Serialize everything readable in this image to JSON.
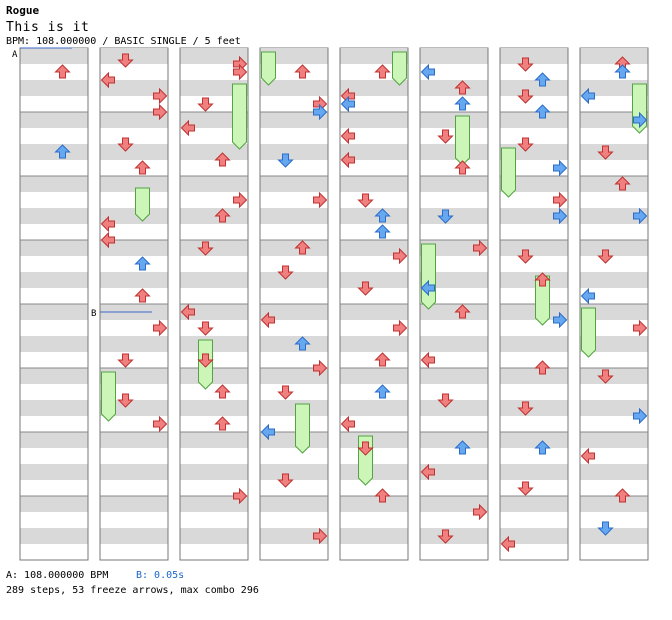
{
  "song": {
    "title": "Rogue",
    "subtitle": "This is it",
    "info": "BPM: 108.000000 / BASIC SINGLE / 5 feet"
  },
  "markers": {
    "a": "A",
    "b": "B"
  },
  "footer": {
    "bpm_a": "A: 108.000000 BPM",
    "stop_b": "B: 0.05s",
    "stats": "289 steps, 53 freeze arrows, max combo 296"
  },
  "colors": {
    "red": "#f08080",
    "blue": "#66a8f0",
    "freeze": "#ccf5b8",
    "freeze_border": "#54a244",
    "stripe": "#d9d9d9"
  },
  "chart_data": {
    "type": "step-chart",
    "lanes": [
      "left",
      "down",
      "up",
      "right"
    ],
    "columns": 8,
    "measures_per_column": 8,
    "notes": [
      [
        0,
        1,
        0,
        2
      ],
      [
        0,
        6,
        3,
        2
      ],
      [
        1,
        0.25,
        0,
        1
      ],
      [
        1,
        1.5,
        0,
        0
      ],
      [
        1,
        2.5,
        0,
        3
      ],
      [
        1,
        3.5,
        0,
        3
      ],
      [
        1,
        5.5,
        0,
        1
      ],
      [
        1,
        7,
        0,
        2
      ],
      [
        1,
        10.5,
        0,
        0
      ],
      [
        1,
        11.5,
        0,
        0
      ],
      [
        1,
        13,
        1,
        2
      ],
      [
        1,
        15,
        0,
        2
      ],
      [
        1,
        17,
        0,
        3
      ],
      [
        1,
        19,
        0,
        1
      ],
      [
        1,
        21.5,
        0,
        1
      ],
      [
        1,
        23,
        0,
        3
      ],
      [
        2,
        0.5,
        0,
        3
      ],
      [
        2,
        1,
        0,
        3
      ],
      [
        2,
        3,
        0,
        1
      ],
      [
        2,
        4.5,
        0,
        0
      ],
      [
        2,
        6.5,
        0,
        2
      ],
      [
        2,
        9,
        0,
        3
      ],
      [
        2,
        10,
        0,
        2
      ],
      [
        2,
        12,
        0,
        1
      ],
      [
        2,
        16,
        0,
        0
      ],
      [
        2,
        17,
        0,
        1
      ],
      [
        2,
        19,
        0,
        1
      ],
      [
        2,
        21,
        0,
        2
      ],
      [
        2,
        23,
        0,
        2
      ],
      [
        2,
        27.5,
        0,
        3
      ],
      [
        3,
        1,
        0,
        2
      ],
      [
        3,
        3,
        0,
        3
      ],
      [
        3,
        3.5,
        1,
        3
      ],
      [
        3,
        6.5,
        1,
        1
      ],
      [
        3,
        9,
        0,
        3
      ],
      [
        3,
        12,
        0,
        2
      ],
      [
        3,
        13.5,
        0,
        1
      ],
      [
        3,
        16.5,
        0,
        0
      ],
      [
        3,
        18,
        1,
        2
      ],
      [
        3,
        19.5,
        0,
        3
      ],
      [
        3,
        21,
        0,
        1
      ],
      [
        3,
        23.5,
        1,
        0
      ],
      [
        3,
        26.5,
        0,
        1
      ],
      [
        3,
        30,
        0,
        3
      ],
      [
        4,
        1,
        0,
        2
      ],
      [
        4,
        2.5,
        0,
        0
      ],
      [
        4,
        3,
        1,
        0
      ],
      [
        4,
        5,
        0,
        0
      ],
      [
        4,
        6.5,
        0,
        0
      ],
      [
        4,
        9,
        0,
        1
      ],
      [
        4,
        10,
        1,
        2
      ],
      [
        4,
        11,
        1,
        2
      ],
      [
        4,
        12.5,
        0,
        3
      ],
      [
        4,
        14.5,
        0,
        1
      ],
      [
        4,
        17,
        0,
        3
      ],
      [
        4,
        19,
        0,
        2
      ],
      [
        4,
        21,
        1,
        2
      ],
      [
        4,
        23,
        0,
        0
      ],
      [
        4,
        24.5,
        0,
        1
      ],
      [
        4,
        27.5,
        0,
        2
      ],
      [
        5,
        1,
        1,
        0
      ],
      [
        5,
        2,
        0,
        2
      ],
      [
        5,
        3,
        1,
        2
      ],
      [
        5,
        5,
        0,
        1
      ],
      [
        5,
        7,
        0,
        2
      ],
      [
        5,
        10,
        1,
        1
      ],
      [
        5,
        12,
        0,
        3
      ],
      [
        5,
        14.5,
        1,
        0
      ],
      [
        5,
        16,
        0,
        2
      ],
      [
        5,
        19,
        0,
        0
      ],
      [
        5,
        21.5,
        0,
        1
      ],
      [
        5,
        24.5,
        1,
        2
      ],
      [
        5,
        26,
        0,
        0
      ],
      [
        5,
        28.5,
        0,
        3
      ],
      [
        5,
        30,
        0,
        1
      ],
      [
        6,
        0.5,
        0,
        1
      ],
      [
        6,
        1.5,
        1,
        2
      ],
      [
        6,
        2.5,
        0,
        1
      ],
      [
        6,
        3.5,
        1,
        2
      ],
      [
        6,
        5.5,
        0,
        1
      ],
      [
        6,
        7,
        1,
        3
      ],
      [
        6,
        9,
        0,
        3
      ],
      [
        6,
        10,
        1,
        3
      ],
      [
        6,
        12.5,
        0,
        1
      ],
      [
        6,
        14,
        0,
        2
      ],
      [
        6,
        16.5,
        1,
        3
      ],
      [
        6,
        19.5,
        0,
        2
      ],
      [
        6,
        22,
        0,
        1
      ],
      [
        6,
        24.5,
        1,
        2
      ],
      [
        6,
        27,
        0,
        1
      ],
      [
        6,
        30.5,
        0,
        0
      ],
      [
        7,
        0.5,
        0,
        2
      ],
      [
        7,
        1,
        1,
        2
      ],
      [
        7,
        2.5,
        1,
        0
      ],
      [
        7,
        4,
        1,
        3
      ],
      [
        7,
        6,
        0,
        1
      ],
      [
        7,
        8,
        0,
        2
      ],
      [
        7,
        10,
        1,
        3
      ],
      [
        7,
        12.5,
        0,
        1
      ],
      [
        7,
        15,
        1,
        0
      ],
      [
        7,
        17,
        0,
        3
      ],
      [
        7,
        20,
        0,
        1
      ],
      [
        7,
        22.5,
        1,
        3
      ],
      [
        7,
        25,
        0,
        0
      ],
      [
        7,
        27.5,
        0,
        2
      ],
      [
        7,
        29.5,
        1,
        1
      ]
    ],
    "freezes": [
      [
        1,
        8.5,
        2,
        2
      ],
      [
        1,
        20,
        3,
        0
      ],
      [
        2,
        2,
        4,
        3
      ],
      [
        2,
        18,
        3,
        1
      ],
      [
        3,
        0,
        2,
        0
      ],
      [
        3,
        22,
        3,
        2
      ],
      [
        4,
        0,
        2,
        3
      ],
      [
        4,
        24,
        3,
        1
      ],
      [
        5,
        4,
        3,
        2
      ],
      [
        5,
        12,
        4,
        0
      ],
      [
        6,
        6,
        3,
        0
      ],
      [
        6,
        14,
        3,
        2
      ],
      [
        7,
        2,
        3,
        3
      ],
      [
        7,
        16,
        3,
        0
      ]
    ],
    "marker_positions": {
      "a": [
        0,
        0
      ],
      "b": [
        1,
        16.5
      ]
    }
  }
}
